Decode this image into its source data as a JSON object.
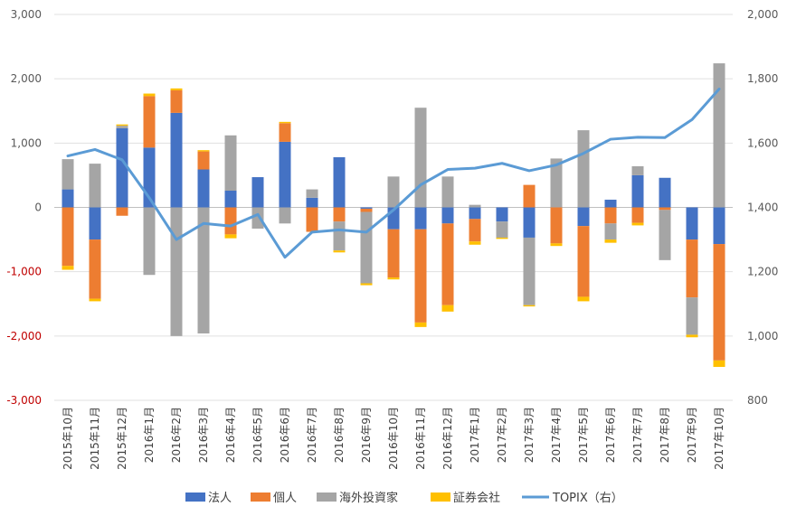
{
  "chart_data": {
    "type": "bar",
    "stacked": true,
    "categories": [
      "2015年10月",
      "2015年11月",
      "2015年12月",
      "2016年1月",
      "2016年2月",
      "2016年3月",
      "2016年4月",
      "2016年5月",
      "2016年6月",
      "2016年7月",
      "2016年8月",
      "2016年9月",
      "2016年10月",
      "2016年11月",
      "2016年12月",
      "2017年1月",
      "2017年2月",
      "2017年3月",
      "2017年4月",
      "2017年5月",
      "2017年6月",
      "2017年7月",
      "2017年8月",
      "2017年9月",
      "2017年10月"
    ],
    "y_left": {
      "min": -3000,
      "max": 3000,
      "ticks": [
        3000,
        2000,
        1000,
        0,
        -1000,
        -2000,
        -3000
      ],
      "tick_labels": [
        "3,000",
        "2,000",
        "1,000",
        "0",
        "-1,000",
        "-2,000",
        "-3,000"
      ],
      "negative_color": "#c00000"
    },
    "y_right": {
      "min": 800,
      "max": 2000,
      "ticks": [
        2000,
        1800,
        1600,
        1400,
        1200,
        1000,
        800
      ],
      "tick_labels": [
        "2,000",
        "1,800",
        "1,600",
        "1,400",
        "1,200",
        "1,000",
        "800"
      ]
    },
    "series": [
      {
        "name": "法人",
        "color": "#4472c4",
        "axis": "left",
        "values": [
          280,
          -500,
          1230,
          930,
          1470,
          590,
          260,
          470,
          1020,
          150,
          780,
          -20,
          -340,
          -340,
          -250,
          -180,
          -220,
          -470,
          0,
          -290,
          120,
          500,
          460,
          -500,
          -570
        ]
      },
      {
        "name": "個人",
        "color": "#ed7d31",
        "axis": "left",
        "values": [
          -910,
          -920,
          -130,
          800,
          350,
          280,
          -420,
          0,
          290,
          -380,
          -220,
          -50,
          -750,
          -1450,
          -1270,
          -350,
          0,
          350,
          -560,
          -1100,
          -250,
          -240,
          -40,
          -900,
          -1810
        ]
      },
      {
        "name": "海外投資家",
        "color": "#a5a5a5",
        "axis": "left",
        "values": [
          470,
          680,
          40,
          -1050,
          -2000,
          -1960,
          860,
          -330,
          -250,
          130,
          -450,
          -1110,
          480,
          1550,
          480,
          40,
          -250,
          -1050,
          760,
          1200,
          -250,
          140,
          -780,
          -580,
          2240
        ]
      },
      {
        "name": "証券会社",
        "color": "#ffc000",
        "axis": "left",
        "values": [
          -60,
          -40,
          20,
          40,
          30,
          20,
          -60,
          0,
          20,
          0,
          -30,
          -30,
          -30,
          -70,
          -100,
          -50,
          -20,
          -20,
          -40,
          -70,
          -50,
          -40,
          0,
          -40,
          -100
        ]
      },
      {
        "name": "TOPIX（右）",
        "color": "#5b9bd5",
        "axis": "right",
        "type": "line",
        "values": [
          1560,
          1580,
          1548,
          1430,
          1300,
          1350,
          1342,
          1378,
          1245,
          1323,
          1330,
          1323,
          1392,
          1470,
          1518,
          1522,
          1537,
          1514,
          1532,
          1568,
          1612,
          1618,
          1617,
          1673,
          1768
        ]
      }
    ],
    "legend_position": "bottom",
    "grid": true
  }
}
